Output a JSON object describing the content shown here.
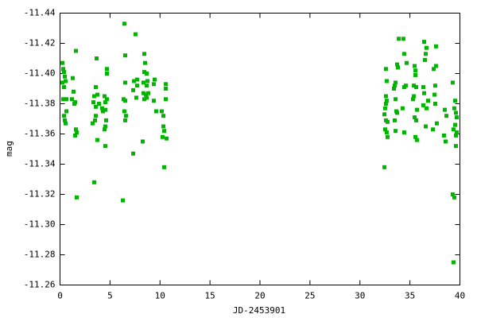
{
  "chart_data": {
    "type": "scatter",
    "x_label": "JD-2453901",
    "y_label": "mag",
    "color": "#00b400",
    "xlim": [
      0,
      40
    ],
    "xticks": [
      0,
      5,
      10,
      15,
      20,
      25,
      30,
      35,
      40
    ],
    "ylim": [
      -11.26,
      -11.44
    ],
    "yticks": [
      -11.44,
      -11.42,
      {
        "value": -11.4,
        "label": "-11.40"
      },
      -11.38,
      -11.36,
      -11.34,
      -11.32,
      {
        "value": -11.3,
        "label": "-11.30"
      },
      -11.28,
      -11.26
    ],
    "grid": false,
    "x": [
      0.24,
      0.32,
      0.4,
      0.48,
      0.24,
      0.56,
      0.4,
      0.32,
      0.64,
      0.64,
      0.4,
      0.48,
      0.56,
      1.59,
      1.27,
      1.35,
      1.19,
      1.43,
      1.51,
      1.59,
      1.51,
      1.67,
      1.67,
      3.66,
      3.58,
      3.42,
      3.74,
      3.34,
      3.58,
      3.9,
      3.5,
      3.26,
      3.58,
      3.74,
      3.42,
      4.69,
      4.69,
      4.45,
      4.69,
      4.53,
      4.21,
      4.53,
      4.29,
      4.61,
      4.53,
      4.45,
      4.53,
      6.44,
      6.52,
      6.52,
      6.36,
      6.52,
      6.44,
      6.6,
      6.52,
      6.28,
      7.55,
      7.4,
      7.32,
      7.71,
      7.71,
      7.63,
      7.32,
      8.43,
      8.51,
      8.43,
      8.67,
      8.35,
      8.75,
      8.35,
      8.59,
      8.67,
      8.83,
      8.43,
      8.67,
      8.27,
      9.46,
      9.38,
      9.38,
      9.62,
      10.58,
      10.58,
      10.18,
      10.34,
      10.34,
      10.42,
      10.26,
      10.66,
      10.58,
      10.42,
      32.45,
      32.6,
      32.68,
      32.6,
      32.68,
      32.6,
      32.52,
      32.45,
      32.6,
      32.76,
      32.52,
      32.68,
      32.76,
      33.4,
      33.48,
      33.56,
      33.72,
      33.8,
      33.88,
      33.56,
      33.64,
      33.48,
      33.72,
      33.56,
      34.35,
      34.43,
      34.67,
      34.59,
      34.43,
      34.27,
      34.43,
      35.47,
      35.55,
      35.55,
      35.39,
      35.63,
      35.39,
      35.31,
      35.47,
      35.63,
      35.71,
      35.55,
      35.71,
      36.42,
      36.66,
      36.58,
      36.5,
      36.34,
      36.42,
      36.34,
      36.66,
      36.82,
      36.58,
      37.61,
      37.61,
      37.38,
      37.53,
      37.46,
      37.53,
      37.69,
      37.3,
      38.49,
      38.65,
      38.41,
      38.57,
      39.28,
      39.52,
      39.44,
      39.6,
      39.68,
      39.52,
      39.68,
      39.6,
      39.6,
      39.36,
      39.28,
      39.44,
      39.36
    ],
    "values": [
      -11.407,
      -11.403,
      -11.401,
      -11.398,
      -11.394,
      -11.395,
      -11.391,
      -11.383,
      -11.383,
      -11.375,
      -11.372,
      -11.369,
      -11.367,
      -11.415,
      -11.397,
      -11.388,
      -11.383,
      -11.38,
      -11.381,
      -11.363,
      -11.359,
      -11.361,
      -11.318,
      -11.41,
      -11.391,
      -11.385,
      -11.386,
      -11.381,
      -11.378,
      -11.38,
      -11.369,
      -11.367,
      -11.372,
      -11.356,
      -11.328,
      -11.403,
      -11.4,
      -11.385,
      -11.383,
      -11.381,
      -11.377,
      -11.376,
      -11.375,
      -11.369,
      -11.365,
      -11.363,
      -11.352,
      -11.433,
      -11.412,
      -11.394,
      -11.383,
      -11.382,
      -11.375,
      -11.372,
      -11.369,
      -11.316,
      -11.426,
      -11.395,
      -11.389,
      -11.396,
      -11.392,
      -11.384,
      -11.347,
      -11.413,
      -11.407,
      -11.401,
      -11.4,
      -11.394,
      -11.395,
      -11.387,
      -11.386,
      -11.384,
      -11.387,
      -11.383,
      -11.392,
      -11.355,
      -11.396,
      -11.393,
      -11.382,
      -11.375,
      -11.393,
      -11.39,
      -11.375,
      -11.372,
      -11.365,
      -11.362,
      -11.358,
      -11.357,
      -11.383,
      -11.338,
      -11.338,
      -11.403,
      -11.395,
      -11.385,
      -11.382,
      -11.38,
      -11.377,
      -11.373,
      -11.369,
      -11.368,
      -11.363,
      -11.361,
      -11.358,
      -11.39,
      -11.392,
      -11.394,
      -11.406,
      -11.404,
      -11.423,
      -11.383,
      -11.375,
      -11.369,
      -11.374,
      -11.362,
      -11.423,
      -11.413,
      -11.407,
      -11.392,
      -11.391,
      -11.377,
      -11.361,
      -11.405,
      -11.402,
      -11.399,
      -11.392,
      -11.391,
      -11.385,
      -11.383,
      -11.371,
      -11.369,
      -11.376,
      -11.358,
      -11.356,
      -11.421,
      -11.417,
      -11.413,
      -11.409,
      -11.391,
      -11.387,
      -11.379,
      -11.377,
      -11.382,
      -11.365,
      -11.418,
      -11.405,
      -11.403,
      -11.392,
      -11.386,
      -11.38,
      -11.367,
      -11.363,
      -11.376,
      -11.372,
      -11.359,
      -11.355,
      -11.394,
      -11.382,
      -11.377,
      -11.374,
      -11.371,
      -11.366,
      -11.361,
      -11.352,
      -11.359,
      -11.363,
      -11.32,
      -11.318,
      -11.275
    ]
  }
}
